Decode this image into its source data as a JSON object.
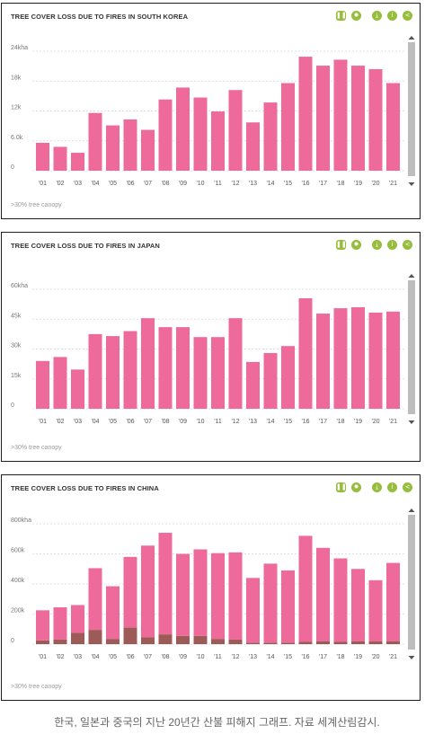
{
  "colors": {
    "pink": "#ee6a9b",
    "brown": "#9c5b56",
    "accent": "#97bd3d",
    "scroll": "#bdbdbd",
    "grid": "#d6d6d6"
  },
  "toolbar_icons": [
    "pause-icon",
    "gear-icon",
    "download-icon",
    "info-icon",
    "share-icon"
  ],
  "toolbar_glyphs": [
    "❚❚",
    "✹",
    "⤓",
    "i",
    "<"
  ],
  "caption": "한국, 일본과 중국의 지난 20년간 산불 피해지 그래프. 자료 세계산림감시.",
  "chart_data": [
    {
      "type": "bar",
      "title": "TREE COVER LOSS DUE TO FIRES IN SOUTH KOREA",
      "footer": ">30% tree canopy",
      "categories": [
        "'01",
        "'02",
        "'03",
        "'04",
        "'05",
        "'06",
        "'07",
        "'08",
        "'09",
        "'10",
        "'11",
        "'12",
        "'13",
        "'14",
        "'15",
        "'16",
        "'17",
        "'18",
        "'19",
        "'20",
        "'21"
      ],
      "ylim": [
        0,
        24000
      ],
      "yticks": [
        0,
        6000,
        12000,
        18000,
        24000
      ],
      "ytick_labels": [
        "0",
        "6.0k",
        "12k",
        "18k",
        "24kha"
      ],
      "series": [
        {
          "color": "#ee6a9b",
          "values": [
            5600,
            4800,
            3600,
            11600,
            9100,
            10300,
            8200,
            14300,
            16700,
            14700,
            11900,
            16200,
            9700,
            13700,
            17600,
            22900,
            21100,
            22300,
            21100,
            20400,
            17600
          ]
        }
      ],
      "grid": true
    },
    {
      "type": "bar",
      "title": "TREE COVER LOSS DUE TO FIRES IN JAPAN",
      "footer": ">30% tree canopy",
      "categories": [
        "'01",
        "'02",
        "'03",
        "'04",
        "'05",
        "'06",
        "'07",
        "'08",
        "'09",
        "'10",
        "'11",
        "'12",
        "'13",
        "'14",
        "'15",
        "'16",
        "'17",
        "'18",
        "'19",
        "'20",
        "'21"
      ],
      "ylim": [
        0,
        60000
      ],
      "yticks": [
        0,
        15000,
        30000,
        45000,
        60000
      ],
      "ytick_labels": [
        "0",
        "15k",
        "30k",
        "45k",
        "60kha"
      ],
      "series": [
        {
          "color": "#ee6a9b",
          "values": [
            24000,
            26000,
            19700,
            37500,
            36500,
            39000,
            45500,
            41000,
            41000,
            36000,
            36000,
            45500,
            23500,
            28000,
            31500,
            55500,
            47800,
            50500,
            51000,
            48300,
            48800
          ]
        }
      ],
      "grid": true
    },
    {
      "type": "bar",
      "stacked": true,
      "title": "TREE COVER LOSS DUE TO FIRES IN CHINA",
      "footer": ">30% tree canopy",
      "categories": [
        "'01",
        "'02",
        "'03",
        "'04",
        "'05",
        "'06",
        "'07",
        "'08",
        "'09",
        "'10",
        "'11",
        "'12",
        "'13",
        "'14",
        "'15",
        "'16",
        "'17",
        "'18",
        "'19",
        "'20",
        "'21"
      ],
      "ylim": [
        0,
        800000
      ],
      "yticks": [
        0,
        200000,
        400000,
        600000,
        800000
      ],
      "ytick_labels": [
        "0",
        "200k",
        "400k",
        "600k",
        "800kha"
      ],
      "series": [
        {
          "color": "#9c5b56",
          "values": [
            25000,
            30000,
            75000,
            95000,
            35000,
            110000,
            45000,
            65000,
            55000,
            55000,
            35000,
            30000,
            10000,
            10000,
            10000,
            15000,
            20000,
            15000,
            20000,
            20000,
            20000
          ]
        },
        {
          "color": "#ee6a9b",
          "values": [
            200000,
            215000,
            185000,
            410000,
            350000,
            470000,
            610000,
            675000,
            545000,
            575000,
            570000,
            580000,
            430000,
            525000,
            480000,
            705000,
            620000,
            555000,
            480000,
            405000,
            520000
          ]
        }
      ],
      "grid": true
    }
  ]
}
